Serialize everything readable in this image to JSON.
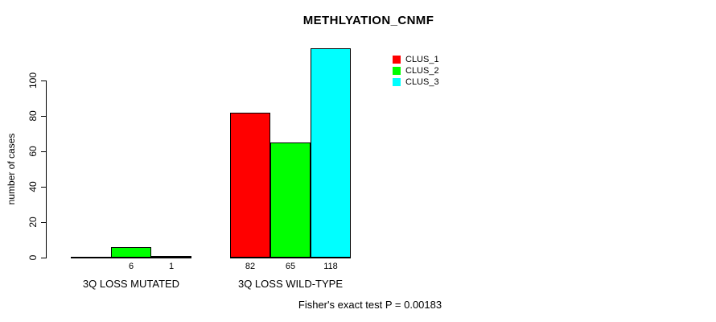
{
  "chart_data": {
    "type": "bar",
    "title": "METHLYATION_CNMF",
    "categories": [
      "3Q LOSS MUTATED",
      "3Q LOSS WILD-TYPE"
    ],
    "series": [
      {
        "name": "CLUS_1",
        "color": "#ff0000",
        "values": [
          0,
          82
        ]
      },
      {
        "name": "CLUS_2",
        "color": "#00ff00",
        "values": [
          6,
          65
        ]
      },
      {
        "name": "CLUS_3",
        "color": "#00ffff",
        "values": [
          1,
          118
        ]
      }
    ],
    "bar_value_labels": [
      [
        "",
        "6",
        "1"
      ],
      [
        "82",
        "65",
        "118"
      ]
    ],
    "ylabel": "number of cases",
    "xlabel": "",
    "yticks": [
      0,
      20,
      40,
      60,
      80,
      100
    ],
    "ylim": [
      0,
      120
    ],
    "grid": false,
    "legend_position": "top-right",
    "annotation": "Fisher's exact test P = 0.00183"
  },
  "footer": {
    "text": "Fisher's exact test P = 0.00183"
  },
  "colors": {
    "background": "#ffffff",
    "axis": "#000000",
    "text": "#000000",
    "clus_1": "#ff0000",
    "clus_2": "#00ff00",
    "clus_3": "#00ffff"
  }
}
